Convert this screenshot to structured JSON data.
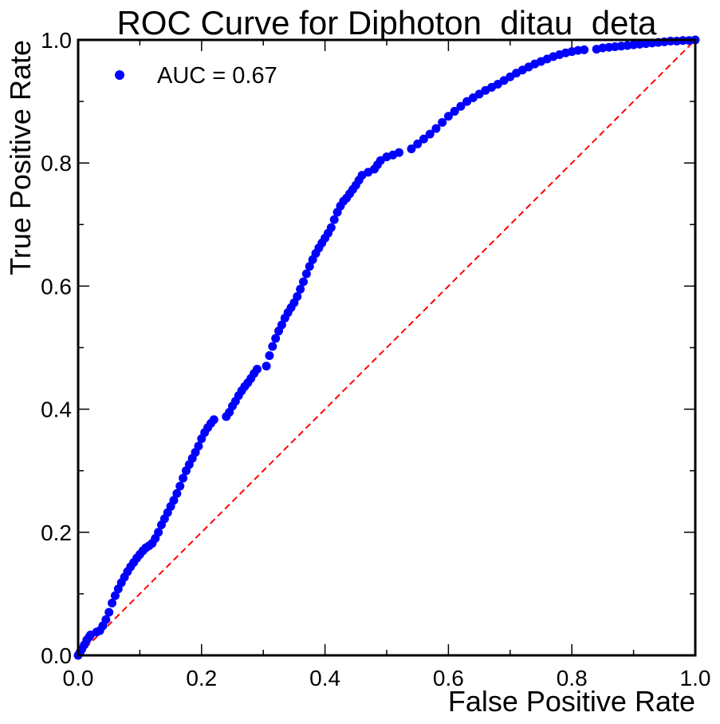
{
  "chart_data": {
    "type": "scatter",
    "title": "ROC Curve for Diphoton_ditau_deta",
    "xlabel": "False Positive Rate",
    "ylabel": "True Positive Rate",
    "xlim": [
      0.0,
      1.0
    ],
    "ylim": [
      0.0,
      1.0
    ],
    "x_ticks": [
      "0.0",
      "0.2",
      "0.4",
      "0.6",
      "0.8",
      "1.0"
    ],
    "y_ticks": [
      "0.0",
      "0.2",
      "0.4",
      "0.6",
      "0.8",
      "1.0"
    ],
    "grid": false,
    "legend": {
      "position": "top-left",
      "entries": [
        "AUC = 0.67"
      ]
    },
    "series": [
      {
        "name": "AUC = 0.67",
        "color": "#0000ff",
        "marker": "circle",
        "points": [
          [
            0.0,
            0.0
          ],
          [
            0.003,
            0.005
          ],
          [
            0.006,
            0.01
          ],
          [
            0.01,
            0.017
          ],
          [
            0.014,
            0.025
          ],
          [
            0.018,
            0.03
          ],
          [
            0.02,
            0.033
          ],
          [
            0.03,
            0.038
          ],
          [
            0.035,
            0.04
          ],
          [
            0.04,
            0.048
          ],
          [
            0.045,
            0.058
          ],
          [
            0.05,
            0.07
          ],
          [
            0.055,
            0.085
          ],
          [
            0.06,
            0.097
          ],
          [
            0.065,
            0.108
          ],
          [
            0.07,
            0.118
          ],
          [
            0.075,
            0.127
          ],
          [
            0.08,
            0.136
          ],
          [
            0.085,
            0.144
          ],
          [
            0.09,
            0.151
          ],
          [
            0.095,
            0.158
          ],
          [
            0.1,
            0.164
          ],
          [
            0.105,
            0.17
          ],
          [
            0.11,
            0.175
          ],
          [
            0.115,
            0.178
          ],
          [
            0.12,
            0.182
          ],
          [
            0.125,
            0.19
          ],
          [
            0.13,
            0.2
          ],
          [
            0.135,
            0.212
          ],
          [
            0.14,
            0.222
          ],
          [
            0.145,
            0.232
          ],
          [
            0.15,
            0.242
          ],
          [
            0.155,
            0.252
          ],
          [
            0.16,
            0.263
          ],
          [
            0.165,
            0.275
          ],
          [
            0.17,
            0.288
          ],
          [
            0.175,
            0.3
          ],
          [
            0.18,
            0.31
          ],
          [
            0.185,
            0.32
          ],
          [
            0.19,
            0.33
          ],
          [
            0.195,
            0.34
          ],
          [
            0.2,
            0.352
          ],
          [
            0.205,
            0.362
          ],
          [
            0.21,
            0.37
          ],
          [
            0.215,
            0.377
          ],
          [
            0.22,
            0.383
          ],
          [
            0.24,
            0.388
          ],
          [
            0.245,
            0.395
          ],
          [
            0.25,
            0.405
          ],
          [
            0.255,
            0.413
          ],
          [
            0.26,
            0.422
          ],
          [
            0.265,
            0.43
          ],
          [
            0.27,
            0.437
          ],
          [
            0.275,
            0.443
          ],
          [
            0.28,
            0.45
          ],
          [
            0.285,
            0.458
          ],
          [
            0.29,
            0.465
          ],
          [
            0.305,
            0.47
          ],
          [
            0.31,
            0.487
          ],
          [
            0.315,
            0.502
          ],
          [
            0.32,
            0.515
          ],
          [
            0.325,
            0.527
          ],
          [
            0.33,
            0.537
          ],
          [
            0.335,
            0.548
          ],
          [
            0.34,
            0.557
          ],
          [
            0.345,
            0.565
          ],
          [
            0.35,
            0.573
          ],
          [
            0.355,
            0.583
          ],
          [
            0.36,
            0.595
          ],
          [
            0.365,
            0.607
          ],
          [
            0.37,
            0.62
          ],
          [
            0.375,
            0.632
          ],
          [
            0.38,
            0.643
          ],
          [
            0.385,
            0.653
          ],
          [
            0.39,
            0.662
          ],
          [
            0.395,
            0.67
          ],
          [
            0.4,
            0.678
          ],
          [
            0.405,
            0.686
          ],
          [
            0.41,
            0.695
          ],
          [
            0.415,
            0.708
          ],
          [
            0.42,
            0.72
          ],
          [
            0.425,
            0.73
          ],
          [
            0.43,
            0.738
          ],
          [
            0.435,
            0.743
          ],
          [
            0.44,
            0.75
          ],
          [
            0.445,
            0.757
          ],
          [
            0.45,
            0.764
          ],
          [
            0.455,
            0.772
          ],
          [
            0.46,
            0.78
          ],
          [
            0.47,
            0.785
          ],
          [
            0.48,
            0.79
          ],
          [
            0.485,
            0.797
          ],
          [
            0.49,
            0.804
          ],
          [
            0.5,
            0.81
          ],
          [
            0.51,
            0.813
          ],
          [
            0.52,
            0.817
          ],
          [
            0.54,
            0.823
          ],
          [
            0.55,
            0.831
          ],
          [
            0.56,
            0.839
          ],
          [
            0.57,
            0.847
          ],
          [
            0.58,
            0.856
          ],
          [
            0.59,
            0.866
          ],
          [
            0.6,
            0.876
          ],
          [
            0.61,
            0.884
          ],
          [
            0.62,
            0.892
          ],
          [
            0.63,
            0.9
          ],
          [
            0.64,
            0.906
          ],
          [
            0.65,
            0.912
          ],
          [
            0.66,
            0.918
          ],
          [
            0.67,
            0.923
          ],
          [
            0.68,
            0.928
          ],
          [
            0.69,
            0.934
          ],
          [
            0.7,
            0.94
          ],
          [
            0.71,
            0.946
          ],
          [
            0.72,
            0.951
          ],
          [
            0.73,
            0.956
          ],
          [
            0.74,
            0.961
          ],
          [
            0.75,
            0.965
          ],
          [
            0.76,
            0.969
          ],
          [
            0.77,
            0.973
          ],
          [
            0.78,
            0.976
          ],
          [
            0.79,
            0.979
          ],
          [
            0.8,
            0.981
          ],
          [
            0.81,
            0.983
          ],
          [
            0.82,
            0.984
          ],
          [
            0.84,
            0.985
          ],
          [
            0.85,
            0.987
          ],
          [
            0.86,
            0.988
          ],
          [
            0.87,
            0.989
          ],
          [
            0.88,
            0.99
          ],
          [
            0.89,
            0.991
          ],
          [
            0.9,
            0.992
          ],
          [
            0.91,
            0.993
          ],
          [
            0.92,
            0.994
          ],
          [
            0.93,
            0.995
          ],
          [
            0.94,
            0.996
          ],
          [
            0.95,
            0.997
          ],
          [
            0.96,
            0.998
          ],
          [
            0.97,
            0.998
          ],
          [
            0.98,
            0.999
          ],
          [
            0.99,
            0.999
          ],
          [
            1.0,
            1.0
          ]
        ]
      },
      {
        "color": "#ff0000",
        "style": "dashed",
        "points": [
          [
            0.0,
            0.0
          ],
          [
            1.0,
            1.0
          ]
        ]
      }
    ]
  }
}
